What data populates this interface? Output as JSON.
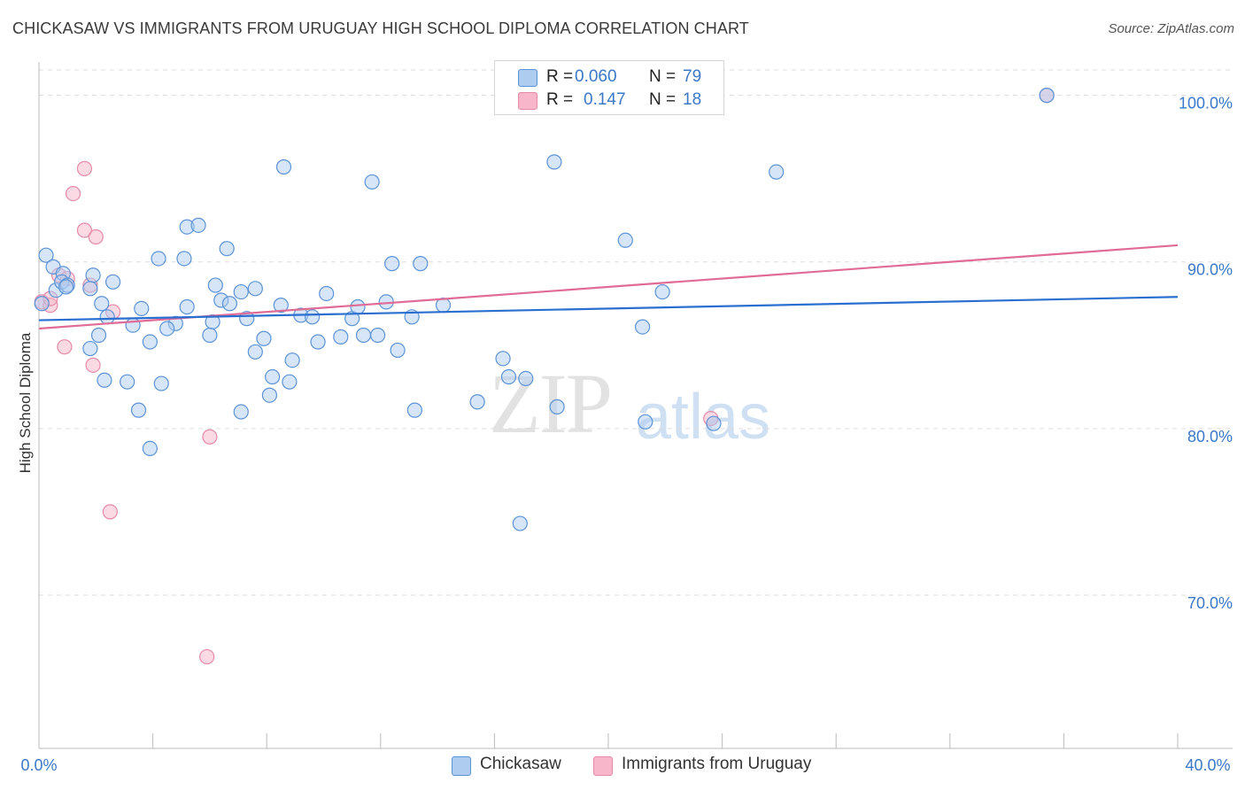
{
  "header": {
    "title": "CHICKASAW VS IMMIGRANTS FROM URUGUAY HIGH SCHOOL DIPLOMA CORRELATION CHART",
    "source": "Source: ZipAtlas.com"
  },
  "legend_top": {
    "rows": [
      {
        "r_label": "R =",
        "r_value": "0.060",
        "n_label": "N =",
        "n_value": "79",
        "color": "#aecbf0"
      },
      {
        "r_label": "R =",
        "r_value": "0.147",
        "n_label": "N =",
        "n_value": "18",
        "color": "#f7b6c9"
      }
    ]
  },
  "legend_bottom": {
    "series1": "Chickasaw",
    "series2": "Immigrants from Uruguay"
  },
  "watermark": {
    "zip": "ZIP",
    "atlas": "atlas"
  },
  "colors": {
    "blue_fill": "#aecbf0",
    "blue_stroke": "#5b93d6",
    "blue_line": "#2a6fcf",
    "pink_fill": "#f7b6c9",
    "pink_stroke": "#e58aa8",
    "pink_line": "#e06b97",
    "axis_label": "#3b78c7",
    "grid": "#dddddd"
  },
  "chart_data": {
    "type": "scatter",
    "title": "CHICKASAW VS IMMIGRANTS FROM URUGUAY HIGH SCHOOL DIPLOMA CORRELATION CHART",
    "xlabel": "",
    "ylabel": "High School Diploma",
    "xlim": [
      0,
      40
    ],
    "ylim": [
      60.8,
      102.0
    ],
    "x_tick_labels": [
      "0.0%",
      "40.0%"
    ],
    "y_ticks": [
      70,
      80,
      90,
      100
    ],
    "y_tick_labels": [
      "70.0%",
      "80.0%",
      "90.0%",
      "100.0%"
    ],
    "grid": true,
    "series": [
      {
        "name": "Chickasaw",
        "r": 0.06,
        "n": 79,
        "trend": {
          "x": [
            0,
            40
          ],
          "y": [
            86.5,
            87.9
          ]
        },
        "points": [
          [
            0.25,
            90.4
          ],
          [
            0.5,
            89.7
          ],
          [
            0.85,
            89.3
          ],
          [
            0.6,
            88.3
          ],
          [
            0.8,
            88.8
          ],
          [
            1.0,
            88.6
          ],
          [
            1.9,
            89.2
          ],
          [
            0.95,
            88.5
          ],
          [
            1.8,
            88.4
          ],
          [
            2.2,
            87.5
          ],
          [
            2.6,
            88.8
          ],
          [
            2.4,
            86.7
          ],
          [
            3.6,
            87.2
          ],
          [
            3.3,
            86.2
          ],
          [
            2.1,
            85.6
          ],
          [
            3.9,
            85.2
          ],
          [
            5.2,
            87.3
          ],
          [
            4.8,
            86.3
          ],
          [
            4.5,
            86.0
          ],
          [
            6.1,
            86.4
          ],
          [
            6.0,
            85.6
          ],
          [
            1.8,
            84.8
          ],
          [
            2.3,
            82.9
          ],
          [
            3.1,
            82.8
          ],
          [
            4.3,
            82.7
          ],
          [
            3.5,
            81.1
          ],
          [
            3.9,
            78.8
          ],
          [
            4.2,
            90.2
          ],
          [
            5.1,
            90.2
          ],
          [
            6.6,
            90.8
          ],
          [
            6.2,
            88.6
          ],
          [
            6.4,
            87.7
          ],
          [
            6.7,
            87.5
          ],
          [
            7.1,
            88.2
          ],
          [
            7.6,
            88.4
          ],
          [
            7.3,
            86.6
          ],
          [
            7.6,
            84.6
          ],
          [
            7.9,
            85.4
          ],
          [
            8.2,
            83.1
          ],
          [
            8.1,
            82.0
          ],
          [
            7.1,
            81.0
          ],
          [
            8.5,
            87.4
          ],
          [
            8.8,
            82.8
          ],
          [
            8.9,
            84.1
          ],
          [
            9.2,
            86.8
          ],
          [
            9.6,
            86.7
          ],
          [
            9.8,
            85.2
          ],
          [
            10.1,
            88.1
          ],
          [
            10.6,
            85.5
          ],
          [
            11.0,
            86.6
          ],
          [
            11.2,
            87.3
          ],
          [
            11.4,
            85.6
          ],
          [
            11.9,
            85.6
          ],
          [
            12.2,
            87.6
          ],
          [
            12.6,
            84.7
          ],
          [
            13.1,
            86.7
          ],
          [
            13.2,
            81.1
          ],
          [
            13.4,
            89.9
          ],
          [
            14.2,
            87.4
          ],
          [
            15.4,
            81.6
          ],
          [
            16.3,
            84.2
          ],
          [
            16.5,
            83.1
          ],
          [
            17.1,
            83.0
          ],
          [
            16.9,
            74.3
          ],
          [
            18.2,
            81.3
          ],
          [
            20.6,
            91.3
          ],
          [
            21.2,
            86.1
          ],
          [
            21.3,
            80.4
          ],
          [
            21.9,
            88.2
          ],
          [
            23.7,
            80.3
          ],
          [
            8.6,
            95.7
          ],
          [
            11.7,
            94.8
          ],
          [
            18.1,
            96.0
          ],
          [
            25.9,
            95.4
          ],
          [
            12.4,
            89.9
          ],
          [
            5.2,
            92.1
          ],
          [
            5.6,
            92.2
          ],
          [
            35.4,
            100.0
          ],
          [
            0.1,
            87.5
          ]
        ]
      },
      {
        "name": "Immigrants from Uruguay",
        "r": 0.147,
        "n": 18,
        "trend": {
          "x": [
            0,
            40
          ],
          "y": [
            86.0,
            91.0
          ]
        },
        "points": [
          [
            0.1,
            87.6
          ],
          [
            0.4,
            87.4
          ],
          [
            0.7,
            89.2
          ],
          [
            1.0,
            89.0
          ],
          [
            1.6,
            95.6
          ],
          [
            1.2,
            94.1
          ],
          [
            1.6,
            91.9
          ],
          [
            2.0,
            91.5
          ],
          [
            0.9,
            84.9
          ],
          [
            1.9,
            83.8
          ],
          [
            2.6,
            87.0
          ],
          [
            6.0,
            79.5
          ],
          [
            2.5,
            75.0
          ],
          [
            5.9,
            66.3
          ],
          [
            23.6,
            80.6
          ],
          [
            35.4,
            100.0
          ],
          [
            0.4,
            87.8
          ],
          [
            1.8,
            88.6
          ]
        ]
      }
    ]
  }
}
